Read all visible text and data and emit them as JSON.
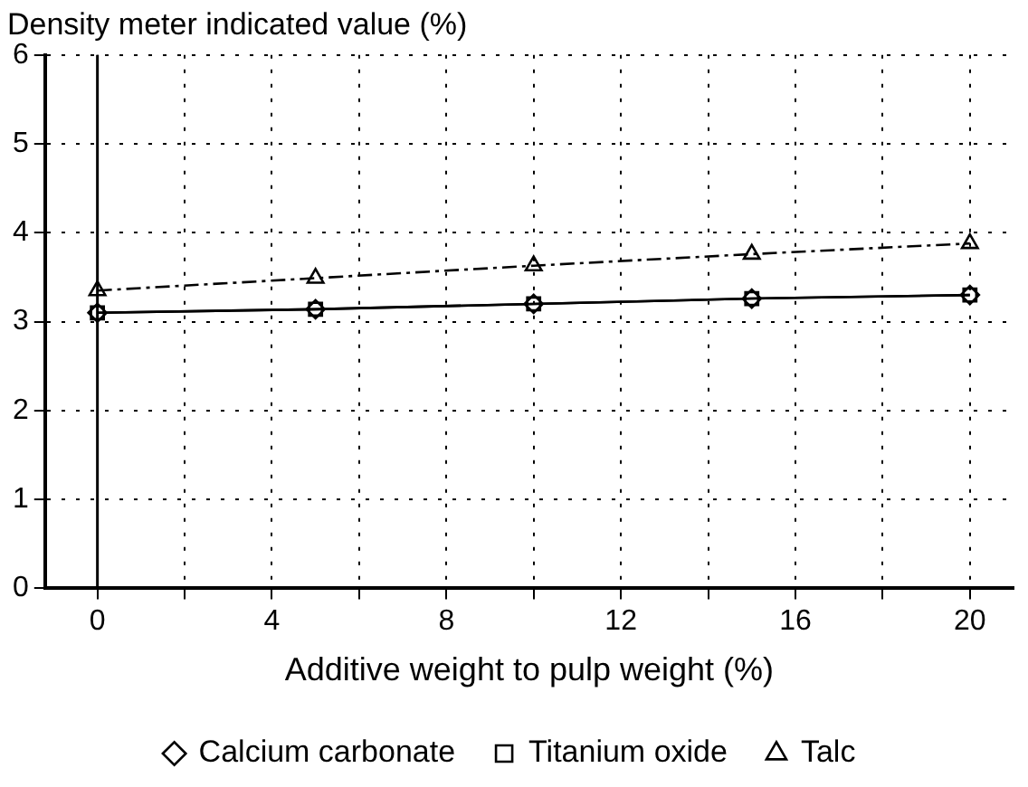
{
  "chart_data": {
    "type": "line",
    "ylabel": "Density meter indicated value (%)",
    "xlabel": "Additive weight to pulp weight (%)",
    "x": [
      0,
      5,
      10,
      15,
      20
    ],
    "series": [
      {
        "name": "Calcium carbonate",
        "color": "#000000",
        "values": [
          3.1,
          3.14,
          3.2,
          3.26,
          3.3
        ],
        "marker": "diamond",
        "line_style": "solid"
      },
      {
        "name": "Titanium oxide",
        "color": "#000000",
        "values": [
          3.1,
          3.14,
          3.2,
          3.26,
          3.3
        ],
        "marker": "square",
        "line_style": "solid"
      },
      {
        "name": "Talc",
        "color": "#000000",
        "values": [
          3.35,
          3.49,
          3.63,
          3.76,
          3.88
        ],
        "marker": "triangle",
        "line_style": "dashed"
      }
    ],
    "xlim": [
      -1.2,
      21
    ],
    "xticks": [
      0,
      {
        "value": 2,
        "label": null
      },
      4,
      {
        "value": 6,
        "label": null
      },
      8,
      {
        "value": 10,
        "label": null
      },
      12,
      {
        "value": 14,
        "label": null
      },
      16,
      {
        "value": 18,
        "label": null
      },
      20
    ],
    "ylim": [
      0,
      6
    ],
    "yticks": [
      0,
      1,
      2,
      3,
      4,
      5,
      6
    ],
    "ref_lines": [
      {
        "axis": "x",
        "value": 0,
        "color": "#000000",
        "line_style": "solid"
      }
    ],
    "grid": true,
    "legend": "bottom"
  }
}
